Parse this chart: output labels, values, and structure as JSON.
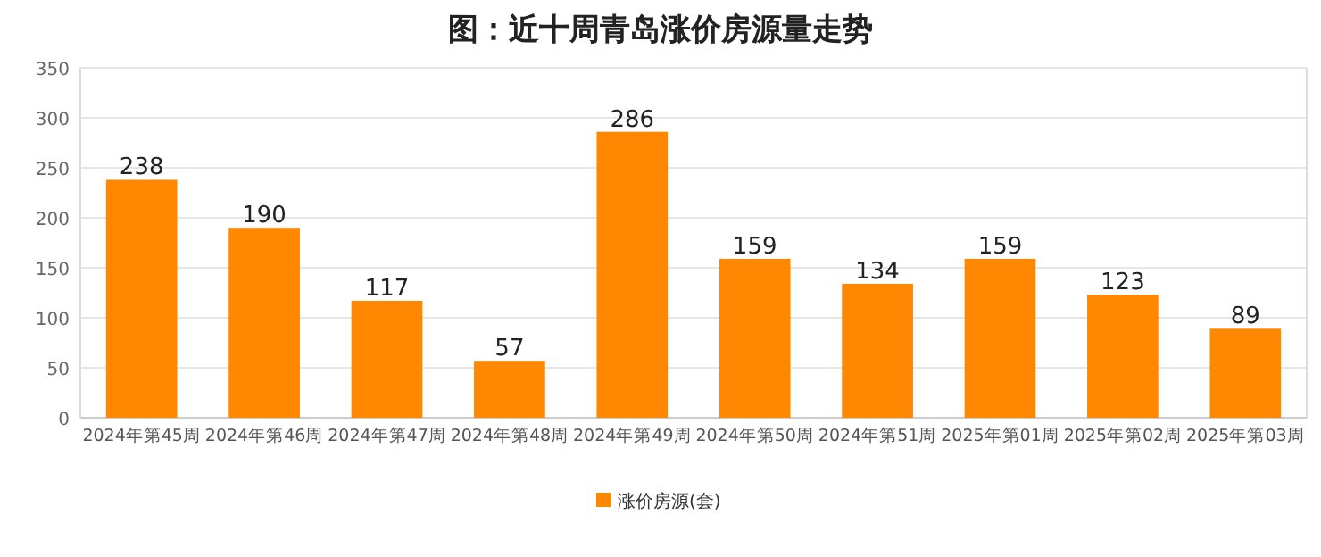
{
  "chart_data": {
    "type": "bar",
    "title": "图：近十周青岛涨价房源量走势",
    "categories": [
      "2024年第45周",
      "2024年第46周",
      "2024年第47周",
      "2024年第48周",
      "2024年第49周",
      "2024年第50周",
      "2024年第51周",
      "2025年第01周",
      "2025年第02周",
      "2025年第03周"
    ],
    "series": [
      {
        "name": "涨价房源(套)",
        "color": "#ff8800",
        "values": [
          238,
          190,
          117,
          57,
          286,
          159,
          134,
          159,
          123,
          89
        ]
      }
    ],
    "ylim": [
      0,
      350
    ],
    "yticks": [
      0,
      50,
      100,
      150,
      200,
      250,
      300,
      350
    ],
    "grid": "y",
    "data_labels": true,
    "legend": "bottom"
  }
}
